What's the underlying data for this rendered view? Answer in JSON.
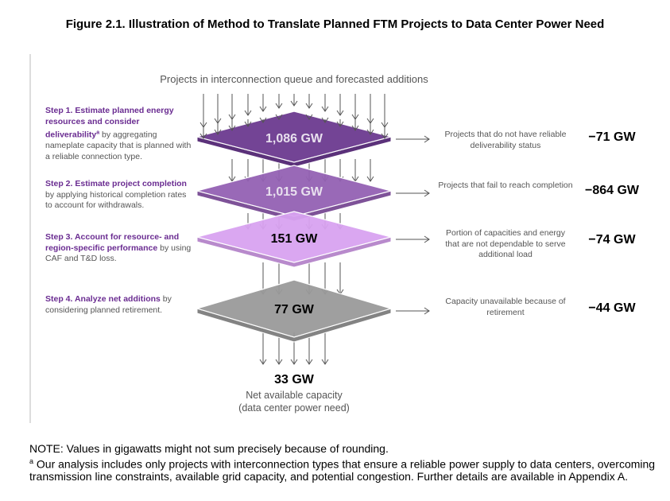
{
  "title": "Figure 2.1. Illustration of Method to Translate Planned FTM Projects to Data Center Power Need",
  "subtitle": "Projects in interconnection queue and forecasted additions",
  "steps": [
    {
      "bold": "Step 1. Estimate planned energy resources and consider deliverability",
      "sup": "a",
      "text": " by aggregating nameplate capacity that is planned with a reliable connection type."
    },
    {
      "bold": "Step 2. Estimate project completion",
      "text": " by applying historical completion rates to account for withdrawals."
    },
    {
      "bold": "Step 3. Account for resource- and region-specific performance",
      "text": " by using CAF and T&D loss."
    },
    {
      "bold": "Step 4. Analyze net additions",
      "text": " by considering planned retirement."
    }
  ],
  "layers": [
    {
      "value": "1,086 GW",
      "color": "#6b3a8f",
      "text_color": "#e8e0ee"
    },
    {
      "value": "1,015 GW",
      "color": "#9461b3",
      "text_color": "#e8e0ee"
    },
    {
      "value": "151 GW",
      "color": "#d8a2f0",
      "text_color": "#000000"
    },
    {
      "value": "77 GW",
      "color": "#9a9a9a",
      "text_color": "#000000"
    }
  ],
  "reductions": [
    {
      "label": "Projects that do not have reliable deliverability status",
      "value": "−71 GW"
    },
    {
      "label": "Projects that fail to reach completion",
      "value": "−864 GW"
    },
    {
      "label": "Portion of capacities and energy that are not dependable to serve additional load",
      "value": "−74 GW"
    },
    {
      "label": "Capacity unavailable because of retirement",
      "value": "−44 GW"
    }
  ],
  "result": {
    "value": "33 GW",
    "label1": "Net available capacity",
    "label2": "(data center power need)"
  },
  "note": "NOTE: Values in gigawatts might not sum precisely because of rounding.",
  "footnote_mark": "a",
  "footnote": " Our analysis includes only projects with interconnection types that ensure a reliable power supply to data centers, overcoming transmission line constraints, available grid capacity, and potential congestion. Further details are available in Appendix A."
}
